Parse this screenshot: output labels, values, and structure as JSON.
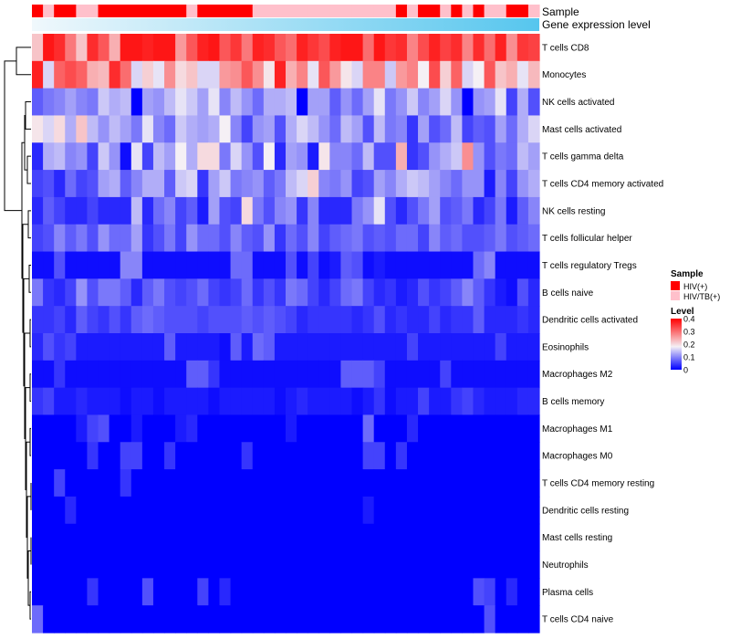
{
  "chart_data": {
    "type": "heatmap",
    "title": "",
    "value_label": "Level",
    "row_labels": [
      "T cells CD8",
      "Monocytes",
      "NK cells activated",
      "Mast cells activated",
      "T cells gamma delta",
      "T cells CD4 memory activated",
      "NK cells resting",
      "T cells follicular helper",
      "T cells regulatory  Tregs",
      "B cells naive",
      "Dendritic cells activated",
      "Eosinophils",
      "Macrophages M2",
      "B cells memory",
      "Macrophages M1",
      "Macrophages M0",
      "T cells CD4 memory resting",
      "Dendritic cells resting",
      "Mast cells resting",
      "Neutrophils",
      "Plasma cells",
      "T cells CD4 naive"
    ],
    "n_columns": 46,
    "annotation_tracks": {
      "sample_track_label": "Sample",
      "gene_track_label": "Gene expression level"
    },
    "sample_annotation": [
      "HIV(+)",
      "HIV/TB(+)",
      "HIV(+)",
      "HIV(+)",
      "HIV/TB(+)",
      "HIV/TB(+)",
      "HIV(+)",
      "HIV(+)",
      "HIV(+)",
      "HIV(+)",
      "HIV(+)",
      "HIV(+)",
      "HIV(+)",
      "HIV(+)",
      "HIV/TB(+)",
      "HIV(+)",
      "HIV(+)",
      "HIV(+)",
      "HIV(+)",
      "HIV(+)",
      "HIV/TB(+)",
      "HIV/TB(+)",
      "HIV/TB(+)",
      "HIV/TB(+)",
      "HIV/TB(+)",
      "HIV/TB(+)",
      "HIV/TB(+)",
      "HIV/TB(+)",
      "HIV/TB(+)",
      "HIV/TB(+)",
      "HIV/TB(+)",
      "HIV/TB(+)",
      "HIV/TB(+)",
      "HIV(+)",
      "HIV/TB(+)",
      "HIV(+)",
      "HIV(+)",
      "HIV/TB(+)",
      "HIV(+)",
      "HIV/TB(+)",
      "HIV(+)",
      "HIV/TB(+)",
      "HIV/TB(+)",
      "HIV(+)",
      "HIV(+)",
      "HIV/TB(+)"
    ],
    "gene_expression_level": {
      "min": 0,
      "max": 1
    },
    "legends": {
      "sample": {
        "title": "Sample",
        "items": [
          {
            "label": "HIV(+)",
            "color": "#ff0000"
          },
          {
            "label": "HIV/TB(+)",
            "color": "#ffc0cb"
          }
        ]
      },
      "level": {
        "title": "Level",
        "ticks": [
          0.4,
          0.3,
          0.2,
          0.1,
          0
        ],
        "tick_labels": [
          "0.4",
          "0.3",
          "0.2",
          "0.1",
          "0"
        ],
        "range": [
          0,
          0.4
        ],
        "colors": {
          "low": "#0000ff",
          "mid": "#f5f0f5",
          "high": "#ff0000"
        }
      }
    },
    "row_levels": [
      [
        0.22,
        0.38,
        0.36,
        0.29,
        0.22,
        0.36,
        0.32,
        0.24,
        0.38,
        0.38,
        0.37,
        0.38,
        0.38,
        0.26,
        0.32,
        0.37,
        0.38,
        0.32,
        0.35,
        0.29,
        0.37,
        0.36,
        0.32,
        0.3,
        0.37,
        0.35,
        0.33,
        0.37,
        0.38,
        0.38,
        0.3,
        0.38,
        0.35,
        0.36,
        0.28,
        0.33,
        0.37,
        0.34,
        0.36,
        0.28,
        0.36,
        0.3,
        0.37,
        0.27,
        0.35,
        0.34
      ],
      [
        0.37,
        0.16,
        0.31,
        0.33,
        0.31,
        0.24,
        0.23,
        0.36,
        0.3,
        0.16,
        0.21,
        0.17,
        0.27,
        0.2,
        0.22,
        0.16,
        0.16,
        0.26,
        0.27,
        0.32,
        0.27,
        0.19,
        0.37,
        0.24,
        0.28,
        0.17,
        0.32,
        0.26,
        0.19,
        0.16,
        0.28,
        0.28,
        0.15,
        0.26,
        0.28,
        0.18,
        0.33,
        0.21,
        0.31,
        0.16,
        0.18,
        0.32,
        0.22,
        0.24,
        0.17,
        0.23
      ],
      [
        0.07,
        0.09,
        0.1,
        0.12,
        0.1,
        0.09,
        0.15,
        0.13,
        0.14,
        0.0,
        0.12,
        0.11,
        0.14,
        0.17,
        0.15,
        0.12,
        0.17,
        0.1,
        0.14,
        0.11,
        0.08,
        0.13,
        0.13,
        0.14,
        0.0,
        0.12,
        0.12,
        0.07,
        0.11,
        0.08,
        0.12,
        0.17,
        0.09,
        0.11,
        0.15,
        0.1,
        0.12,
        0.16,
        0.11,
        0.0,
        0.11,
        0.12,
        0.17,
        0.05,
        0.13,
        0.06
      ],
      [
        0.19,
        0.16,
        0.2,
        0.13,
        0.22,
        0.14,
        0.11,
        0.14,
        0.12,
        0.09,
        0.17,
        0.1,
        0.08,
        0.15,
        0.13,
        0.12,
        0.13,
        0.18,
        0.1,
        0.05,
        0.11,
        0.12,
        0.06,
        0.13,
        0.16,
        0.14,
        0.11,
        0.08,
        0.14,
        0.12,
        0.06,
        0.14,
        0.09,
        0.1,
        0.04,
        0.12,
        0.06,
        0.08,
        0.14,
        0.05,
        0.07,
        0.06,
        0.12,
        0.08,
        0.13,
        0.16
      ],
      [
        0.03,
        0.13,
        0.14,
        0.1,
        0.11,
        0.05,
        0.15,
        0.11,
        0.01,
        0.17,
        0.05,
        0.14,
        0.12,
        0.18,
        0.13,
        0.2,
        0.2,
        0.09,
        0.16,
        0.11,
        0.06,
        0.18,
        0.03,
        0.12,
        0.11,
        0.02,
        0.19,
        0.1,
        0.1,
        0.08,
        0.14,
        0.06,
        0.06,
        0.24,
        0.04,
        0.06,
        0.11,
        0.13,
        0.15,
        0.27,
        0.11,
        0.06,
        0.09,
        0.08,
        0.14,
        0.12
      ],
      [
        0.05,
        0.06,
        0.03,
        0.08,
        0.05,
        0.06,
        0.12,
        0.13,
        0.07,
        0.1,
        0.13,
        0.13,
        0.07,
        0.15,
        0.16,
        0.04,
        0.12,
        0.15,
        0.09,
        0.1,
        0.11,
        0.07,
        0.09,
        0.14,
        0.16,
        0.21,
        0.1,
        0.09,
        0.11,
        0.05,
        0.06,
        0.12,
        0.1,
        0.13,
        0.15,
        0.14,
        0.12,
        0.1,
        0.08,
        0.11,
        0.11,
        0.02,
        0.1,
        0.05,
        0.11,
        0.13
      ],
      [
        0.03,
        0.07,
        0.05,
        0.03,
        0.03,
        0.05,
        0.03,
        0.03,
        0.03,
        0.14,
        0.03,
        0.08,
        0.1,
        0.05,
        0.07,
        0.02,
        0.12,
        0.06,
        0.05,
        0.2,
        0.09,
        0.06,
        0.1,
        0.11,
        0.04,
        0.1,
        0.03,
        0.03,
        0.03,
        0.09,
        0.11,
        0.17,
        0.06,
        0.03,
        0.06,
        0.09,
        0.12,
        0.06,
        0.07,
        0.09,
        0.03,
        0.05,
        0.09,
        0.02,
        0.07,
        0.1
      ],
      [
        0.05,
        0.06,
        0.1,
        0.07,
        0.09,
        0.06,
        0.11,
        0.08,
        0.08,
        0.12,
        0.04,
        0.06,
        0.09,
        0.05,
        0.11,
        0.08,
        0.08,
        0.06,
        0.1,
        0.07,
        0.06,
        0.11,
        0.04,
        0.08,
        0.06,
        0.1,
        0.05,
        0.07,
        0.08,
        0.09,
        0.06,
        0.07,
        0.06,
        0.08,
        0.08,
        0.05,
        0.1,
        0.07,
        0.08,
        0.06,
        0.06,
        0.07,
        0.09,
        0.06,
        0.07,
        0.08
      ],
      [
        0.01,
        0.01,
        0.06,
        0.01,
        0.01,
        0.01,
        0.01,
        0.01,
        0.1,
        0.1,
        0.01,
        0.01,
        0.01,
        0.01,
        0.01,
        0.01,
        0.01,
        0.01,
        0.08,
        0.08,
        0.01,
        0.01,
        0.01,
        0.06,
        0.01,
        0.05,
        0.01,
        0.02,
        0.07,
        0.06,
        0.01,
        0.02,
        0.01,
        0.01,
        0.01,
        0.01,
        0.01,
        0.01,
        0.01,
        0.01,
        0.08,
        0.1,
        0.01,
        0.01,
        0.01,
        0.01
      ],
      [
        0.09,
        0.04,
        0.03,
        0.05,
        0.11,
        0.06,
        0.09,
        0.09,
        0.07,
        0.03,
        0.07,
        0.09,
        0.06,
        0.05,
        0.06,
        0.08,
        0.05,
        0.04,
        0.05,
        0.08,
        0.04,
        0.06,
        0.04,
        0.09,
        0.08,
        0.05,
        0.03,
        0.05,
        0.08,
        0.09,
        0.05,
        0.03,
        0.04,
        0.02,
        0.03,
        0.06,
        0.04,
        0.05,
        0.07,
        0.1,
        0.07,
        0.04,
        0.02,
        0.01,
        0.06,
        0.03
      ],
      [
        0.04,
        0.04,
        0.05,
        0.03,
        0.07,
        0.05,
        0.04,
        0.06,
        0.04,
        0.07,
        0.08,
        0.07,
        0.06,
        0.06,
        0.06,
        0.05,
        0.06,
        0.06,
        0.06,
        0.07,
        0.06,
        0.07,
        0.06,
        0.05,
        0.03,
        0.04,
        0.04,
        0.04,
        0.04,
        0.03,
        0.04,
        0.06,
        0.03,
        0.04,
        0.03,
        0.03,
        0.05,
        0.03,
        0.04,
        0.04,
        0.07,
        0.03,
        0.03,
        0.03,
        0.04,
        0.03
      ],
      [
        0.03,
        0.06,
        0.04,
        0.05,
        0.02,
        0.02,
        0.02,
        0.02,
        0.02,
        0.02,
        0.02,
        0.02,
        0.07,
        0.02,
        0.02,
        0.02,
        0.02,
        0.01,
        0.07,
        0.02,
        0.08,
        0.07,
        0.02,
        0.02,
        0.02,
        0.02,
        0.02,
        0.02,
        0.02,
        0.02,
        0.02,
        0.02,
        0.02,
        0.02,
        0.05,
        0.02,
        0.02,
        0.02,
        0.02,
        0.02,
        0.02,
        0.02,
        0.05,
        0.02,
        0.02,
        0.02
      ],
      [
        0.01,
        0.01,
        0.04,
        0.01,
        0.01,
        0.01,
        0.01,
        0.01,
        0.01,
        0.01,
        0.01,
        0.01,
        0.01,
        0.01,
        0.07,
        0.07,
        0.04,
        0.01,
        0.01,
        0.01,
        0.01,
        0.01,
        0.01,
        0.01,
        0.01,
        0.01,
        0.01,
        0.01,
        0.07,
        0.07,
        0.07,
        0.05,
        0.01,
        0.01,
        0.01,
        0.01,
        0.01,
        0.05,
        0.01,
        0.01,
        0.01,
        0.01,
        0.01,
        0.01,
        0.01,
        0.01
      ],
      [
        0.04,
        0.05,
        0.02,
        0.02,
        0.03,
        0.02,
        0.02,
        0.02,
        0.01,
        0.02,
        0.02,
        0.01,
        0.02,
        0.02,
        0.02,
        0.02,
        0.01,
        0.02,
        0.02,
        0.02,
        0.02,
        0.02,
        0.01,
        0.02,
        0.03,
        0.02,
        0.02,
        0.02,
        0.02,
        0.01,
        0.02,
        0.04,
        0.01,
        0.02,
        0.02,
        0.05,
        0.02,
        0.02,
        0.04,
        0.05,
        0.03,
        0.02,
        0.02,
        0.02,
        0.03,
        0.03
      ],
      [
        0.0,
        0.0,
        0.0,
        0.0,
        0.02,
        0.05,
        0.06,
        0.0,
        0.0,
        0.02,
        0.0,
        0.0,
        0.0,
        0.02,
        0.03,
        0.0,
        0.0,
        0.0,
        0.0,
        0.0,
        0.0,
        0.0,
        0.0,
        0.02,
        0.0,
        0.0,
        0.0,
        0.0,
        0.0,
        0.0,
        0.08,
        0.0,
        0.0,
        0.0,
        0.03,
        0.0,
        0.0,
        0.0,
        0.0,
        0.0,
        0.0,
        0.0,
        0.0,
        0.0,
        0.0,
        0.0
      ],
      [
        0.0,
        0.0,
        0.0,
        0.0,
        0.0,
        0.04,
        0.0,
        0.0,
        0.05,
        0.05,
        0.0,
        0.0,
        0.04,
        0.0,
        0.0,
        0.0,
        0.0,
        0.0,
        0.0,
        0.04,
        0.0,
        0.0,
        0.0,
        0.0,
        0.0,
        0.0,
        0.0,
        0.0,
        0.0,
        0.0,
        0.05,
        0.05,
        0.0,
        0.04,
        0.0,
        0.0,
        0.0,
        0.0,
        0.0,
        0.0,
        0.0,
        0.0,
        0.0,
        0.0,
        0.0,
        0.0
      ],
      [
        0.0,
        0.0,
        0.05,
        0.0,
        0.0,
        0.0,
        0.0,
        0.0,
        0.04,
        0.0,
        0.0,
        0.0,
        0.0,
        0.0,
        0.0,
        0.0,
        0.0,
        0.0,
        0.0,
        0.0,
        0.0,
        0.0,
        0.0,
        0.0,
        0.0,
        0.0,
        0.0,
        0.0,
        0.0,
        0.0,
        0.0,
        0.0,
        0.0,
        0.0,
        0.0,
        0.0,
        0.0,
        0.0,
        0.0,
        0.0,
        0.0,
        0.0,
        0.0,
        0.0,
        0.0,
        0.0
      ],
      [
        0.0,
        0.0,
        0.0,
        0.03,
        0.0,
        0.0,
        0.0,
        0.0,
        0.0,
        0.0,
        0.0,
        0.0,
        0.0,
        0.0,
        0.0,
        0.0,
        0.0,
        0.0,
        0.0,
        0.0,
        0.0,
        0.0,
        0.0,
        0.0,
        0.0,
        0.0,
        0.0,
        0.0,
        0.0,
        0.0,
        0.02,
        0.0,
        0.0,
        0.0,
        0.0,
        0.0,
        0.0,
        0.0,
        0.0,
        0.0,
        0.0,
        0.0,
        0.0,
        0.0,
        0.0,
        0.0
      ],
      [
        0.0,
        0.0,
        0.0,
        0.0,
        0.0,
        0.0,
        0.0,
        0.0,
        0.0,
        0.0,
        0.0,
        0.0,
        0.0,
        0.0,
        0.0,
        0.0,
        0.0,
        0.0,
        0.0,
        0.0,
        0.0,
        0.0,
        0.0,
        0.0,
        0.0,
        0.0,
        0.0,
        0.0,
        0.0,
        0.0,
        0.0,
        0.0,
        0.0,
        0.0,
        0.0,
        0.0,
        0.0,
        0.0,
        0.0,
        0.0,
        0.0,
        0.0,
        0.0,
        0.0,
        0.0,
        0.0
      ],
      [
        0.0,
        0.0,
        0.0,
        0.0,
        0.0,
        0.0,
        0.0,
        0.0,
        0.0,
        0.0,
        0.0,
        0.0,
        0.0,
        0.0,
        0.0,
        0.0,
        0.0,
        0.0,
        0.0,
        0.0,
        0.0,
        0.0,
        0.0,
        0.0,
        0.0,
        0.0,
        0.0,
        0.0,
        0.0,
        0.0,
        0.0,
        0.0,
        0.0,
        0.0,
        0.0,
        0.0,
        0.0,
        0.0,
        0.0,
        0.0,
        0.0,
        0.0,
        0.0,
        0.0,
        0.0,
        0.0
      ],
      [
        0.0,
        0.0,
        0.0,
        0.0,
        0.0,
        0.04,
        0.0,
        0.0,
        0.0,
        0.0,
        0.06,
        0.0,
        0.0,
        0.0,
        0.0,
        0.05,
        0.0,
        0.03,
        0.0,
        0.0,
        0.0,
        0.0,
        0.0,
        0.0,
        0.0,
        0.0,
        0.0,
        0.0,
        0.0,
        0.0,
        0.0,
        0.0,
        0.0,
        0.0,
        0.0,
        0.0,
        0.0,
        0.0,
        0.0,
        0.0,
        0.06,
        0.05,
        0.0,
        0.03,
        0.0,
        0.0
      ],
      [
        0.08,
        0.0,
        0.0,
        0.0,
        0.0,
        0.0,
        0.0,
        0.0,
        0.0,
        0.0,
        0.0,
        0.0,
        0.0,
        0.0,
        0.0,
        0.0,
        0.0,
        0.0,
        0.0,
        0.0,
        0.0,
        0.0,
        0.0,
        0.0,
        0.0,
        0.0,
        0.0,
        0.0,
        0.0,
        0.0,
        0.0,
        0.0,
        0.0,
        0.0,
        0.0,
        0.0,
        0.0,
        0.0,
        0.0,
        0.0,
        0.0,
        0.06,
        0.0,
        0.0,
        0.0,
        0.0
      ]
    ]
  }
}
